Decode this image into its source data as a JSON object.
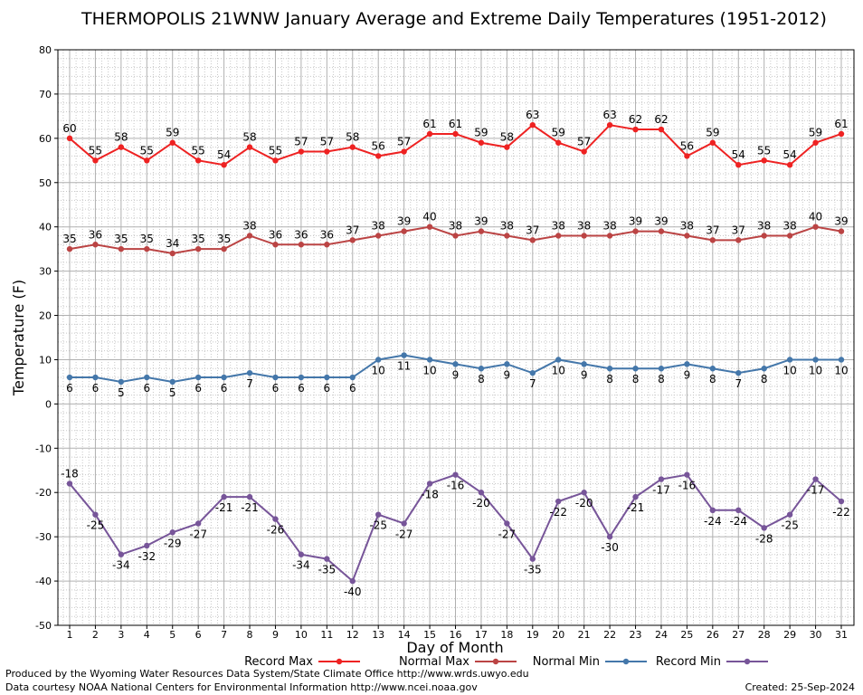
{
  "chart_data": {
    "type": "line",
    "title": "THERMOPOLIS 21WNW January Average and Extreme Daily Temperatures (1951-2012)",
    "xlabel": "Day of Month",
    "ylabel": "Temperature (F)",
    "ylim": [
      -50,
      80
    ],
    "yticks": [
      -50,
      -40,
      -30,
      -20,
      -10,
      0,
      10,
      20,
      30,
      40,
      50,
      60,
      70,
      80
    ],
    "categories": [
      "1",
      "2",
      "3",
      "4",
      "5",
      "6",
      "7",
      "8",
      "9",
      "10",
      "11",
      "12",
      "13",
      "14",
      "15",
      "16",
      "17",
      "18",
      "19",
      "20",
      "21",
      "22",
      "23",
      "24",
      "25",
      "26",
      "27",
      "28",
      "29",
      "30",
      "31"
    ],
    "grid": true,
    "legend_position": "bottom",
    "series": [
      {
        "name": "Record Max",
        "color": "#ee2222",
        "values": [
          60,
          55,
          58,
          55,
          59,
          55,
          54,
          58,
          55,
          57,
          57,
          58,
          56,
          57,
          61,
          61,
          59,
          58,
          63,
          59,
          57,
          63,
          62,
          62,
          56,
          59,
          54,
          55,
          54,
          59,
          61
        ]
      },
      {
        "name": "Normal Max",
        "color": "#bb4444",
        "values": [
          35,
          36,
          35,
          35,
          34,
          35,
          35,
          38,
          36,
          36,
          36,
          37,
          38,
          39,
          40,
          38,
          39,
          38,
          37,
          38,
          38,
          38,
          39,
          39,
          38,
          37,
          37,
          38,
          38,
          40,
          39
        ]
      },
      {
        "name": "Normal Min",
        "color": "#4477aa",
        "values": [
          6,
          6,
          5,
          6,
          5,
          6,
          6,
          7,
          6,
          6,
          6,
          6,
          10,
          11,
          10,
          9,
          8,
          9,
          7,
          10,
          9,
          8,
          8,
          8,
          9,
          8,
          7,
          8,
          10,
          10,
          10
        ]
      },
      {
        "name": "Record Min",
        "color": "#775599",
        "values": [
          -18,
          -25,
          -34,
          -32,
          -29,
          -27,
          -21,
          -21,
          -26,
          -34,
          -35,
          -40,
          -25,
          -27,
          -18,
          -16,
          -20,
          -27,
          -35,
          -22,
          -20,
          -30,
          -21,
          -17,
          -16,
          -24,
          -24,
          -28,
          -25,
          -17,
          -22
        ]
      }
    ]
  },
  "footer": {
    "produced_by": "Produced by the Wyoming Water Resources Data System/State Climate Office http://www.wrds.uwyo.edu",
    "courtesy": "Data courtesy NOAA National Centers for Environmental Information http://www.ncei.noaa.gov",
    "created": "Created:  25-Sep-2024"
  }
}
